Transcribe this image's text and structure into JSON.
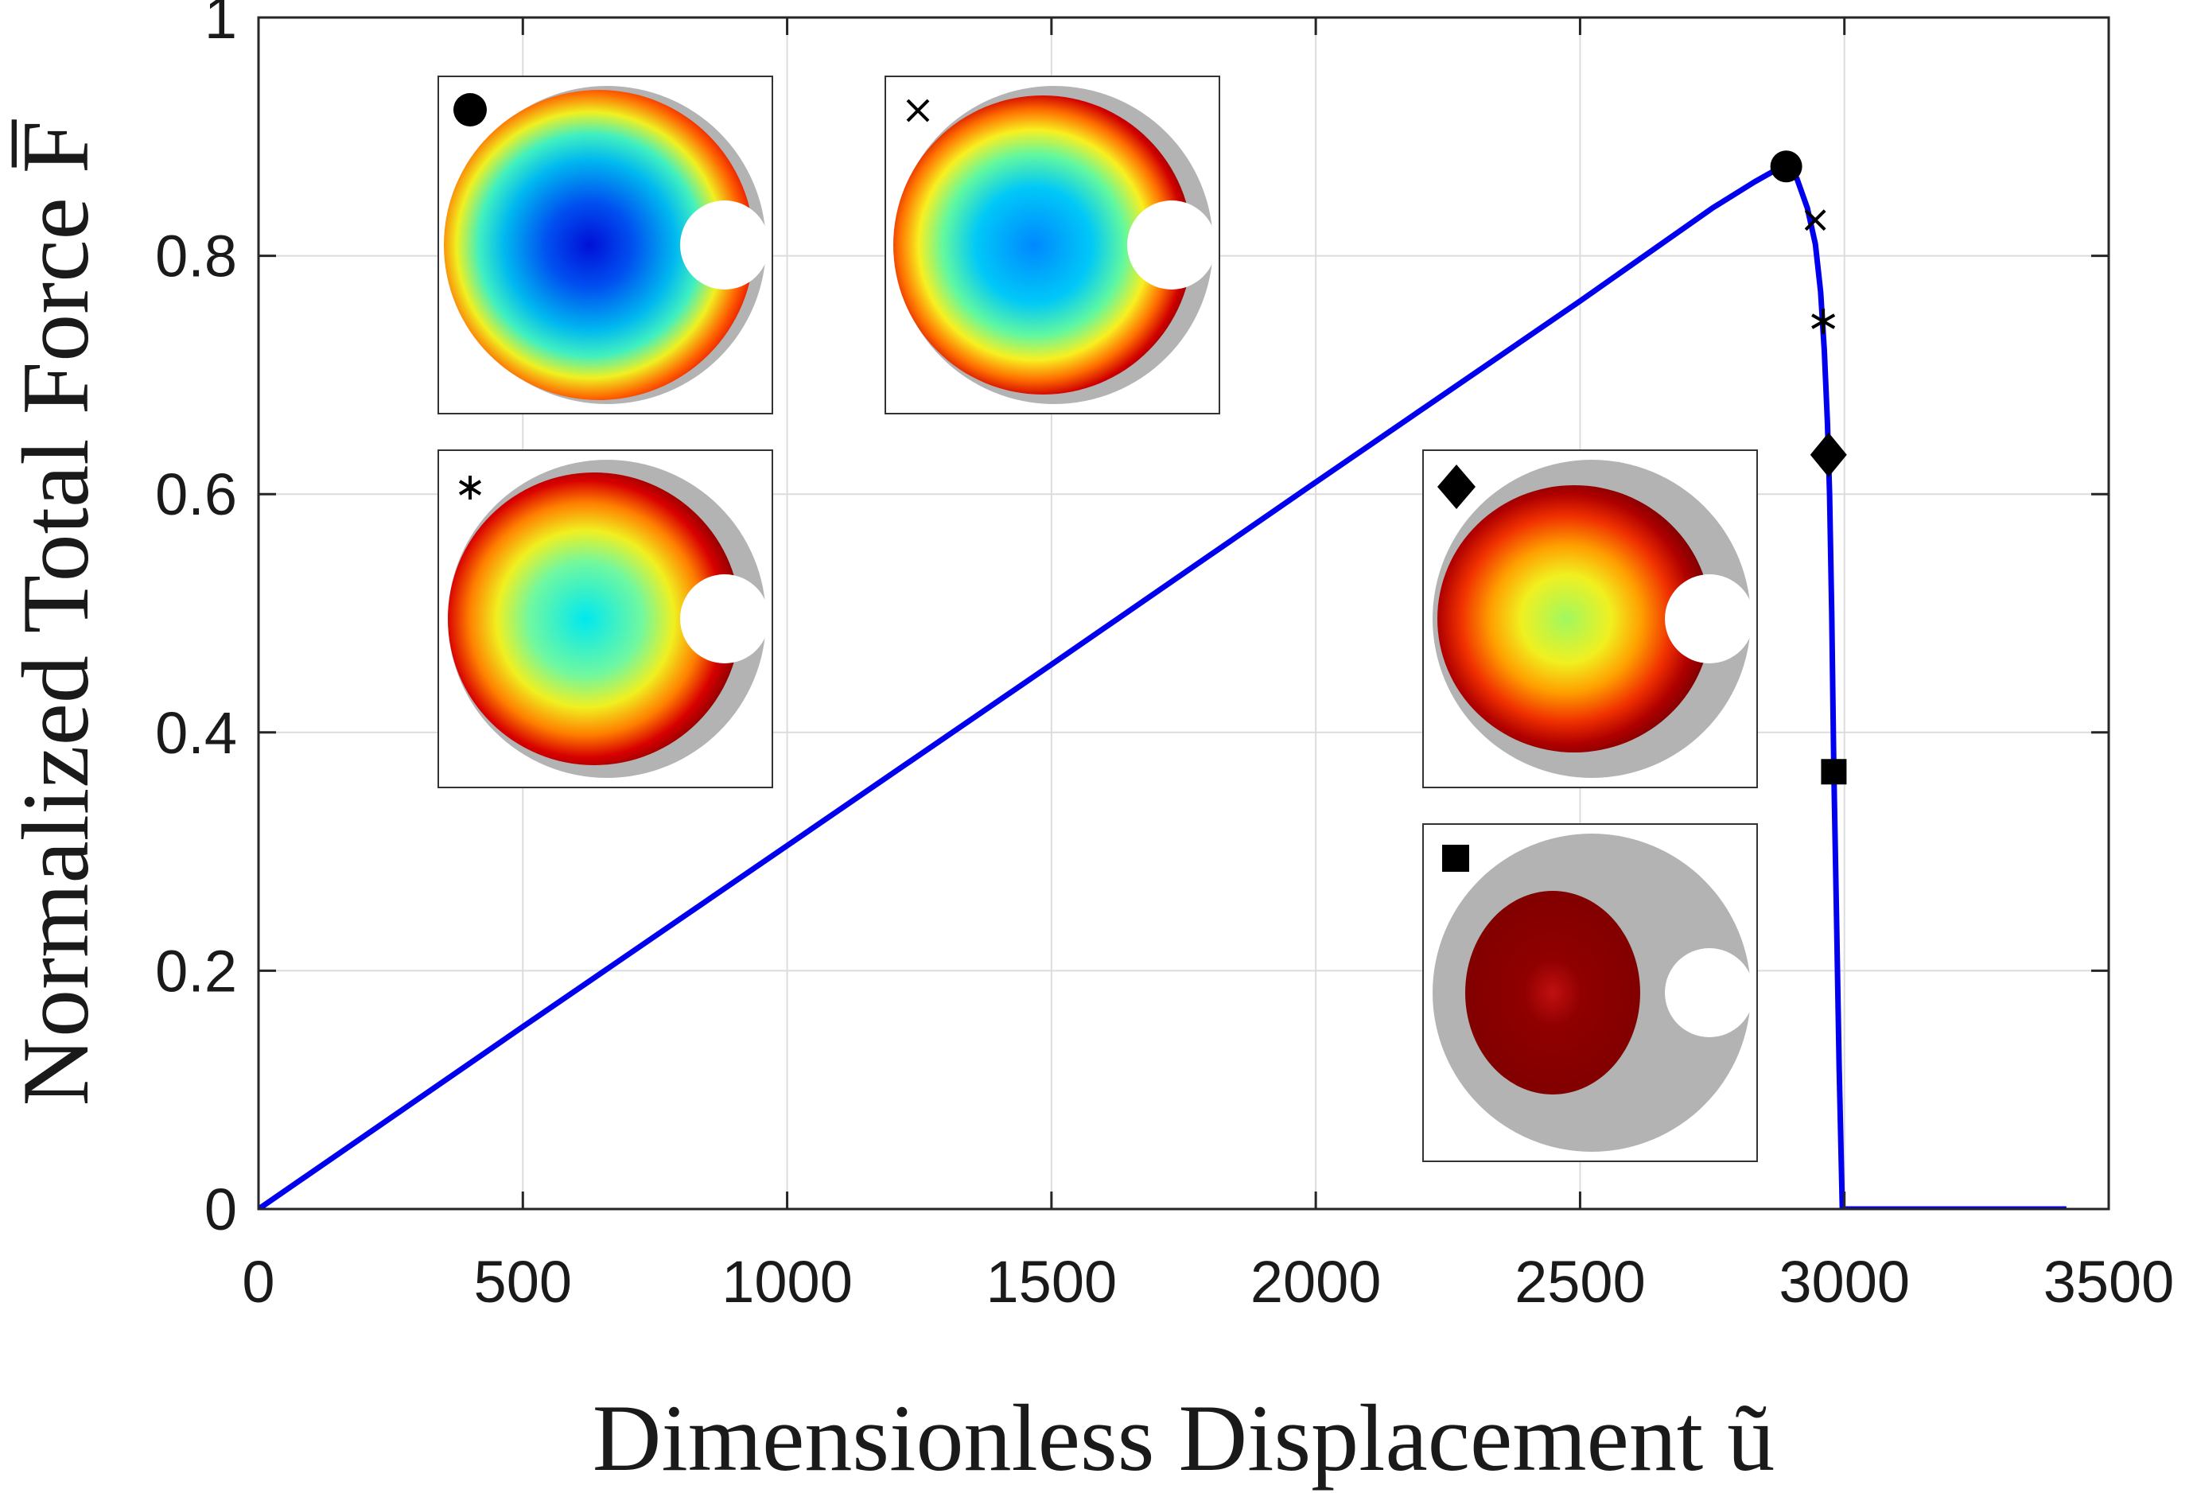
{
  "chart_data": {
    "type": "line",
    "title": "",
    "xlabel": "Dimensionless Displacement ũ",
    "ylabel": "Normalized Total Force F̅",
    "xlim": [
      0,
      3500
    ],
    "ylim": [
      0,
      1
    ],
    "xticks": [
      0,
      500,
      1000,
      1500,
      2000,
      2500,
      3000,
      3500
    ],
    "yticks": [
      0,
      0.2,
      0.4,
      0.6,
      0.8,
      1
    ],
    "xtick_labels": [
      "0",
      "500",
      "1000",
      "1500",
      "2000",
      "2500",
      "3000",
      "3500"
    ],
    "ytick_labels": [
      "0",
      "0.2",
      "0.4",
      "0.6",
      "0.8",
      "1"
    ],
    "grid": true,
    "series": [
      {
        "color": "#0000ee",
        "x": [
          0,
          500,
          1000,
          1500,
          2000,
          2500,
          2750,
          2830,
          2870,
          2890,
          2910,
          2930,
          2945,
          2955,
          2962,
          2968,
          2972,
          2976,
          2980,
          2985,
          2990,
          2996,
          3200,
          3420
        ],
        "y": [
          0,
          0.153,
          0.305,
          0.457,
          0.61,
          0.762,
          0.84,
          0.862,
          0.872,
          0.875,
          0.865,
          0.84,
          0.81,
          0.77,
          0.72,
          0.66,
          0.6,
          0.5,
          0.37,
          0.25,
          0.12,
          0,
          0,
          0
        ]
      }
    ],
    "markers": [
      {
        "symbol": "circle",
        "x": 2890,
        "y": 0.875
      },
      {
        "symbol": "x",
        "x": 2945,
        "y": 0.83
      },
      {
        "symbol": "asterisk",
        "x": 2960,
        "y": 0.745
      },
      {
        "symbol": "diamond",
        "x": 2970,
        "y": 0.633
      },
      {
        "symbol": "square",
        "x": 2980,
        "y": 0.367
      }
    ],
    "insets": [
      {
        "marker": "circle"
      },
      {
        "marker": "x"
      },
      {
        "marker": "asterisk"
      },
      {
        "marker": "diamond"
      },
      {
        "marker": "square"
      }
    ]
  }
}
